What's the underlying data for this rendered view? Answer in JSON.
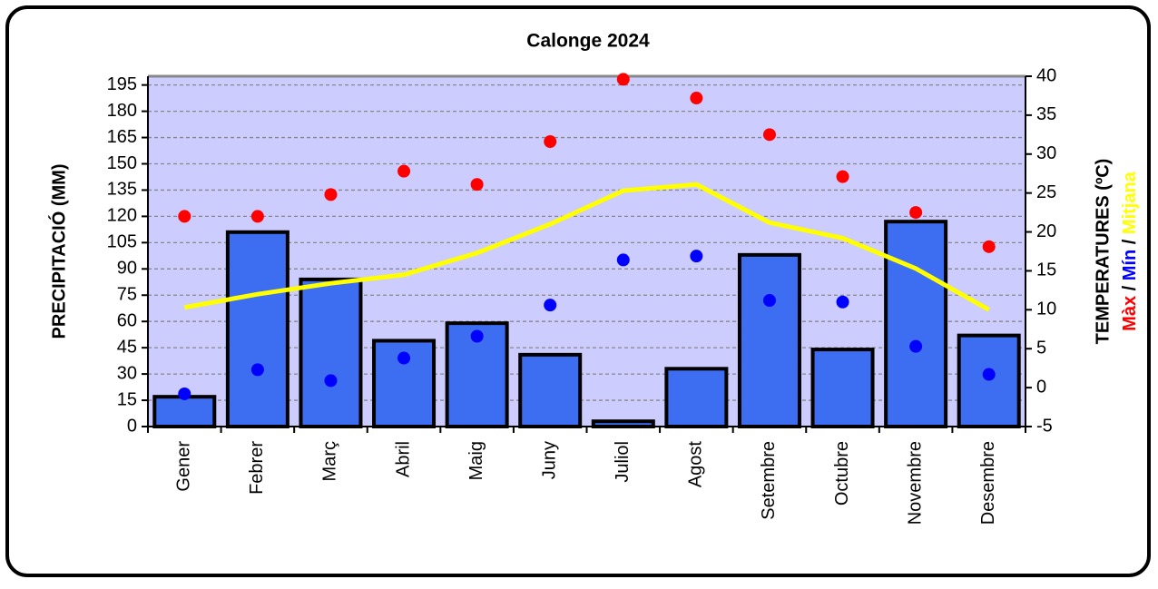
{
  "chart_data": {
    "type": "combo",
    "title": "Calonge 2024",
    "y_label": "PRECIPITACIÓ (MM)",
    "y2_label": "TEMPERATURES (ºC)",
    "y2_label_separator": "/",
    "categories": [
      "Gener",
      "Febrer",
      "Març",
      "Abril",
      "Maig",
      "Juny",
      "Juliol",
      "Agost",
      "Setembre",
      "Octubre",
      "Novembre",
      "Desembre"
    ],
    "series": [
      {
        "name": "Precipitació",
        "type": "bar",
        "color": "#3d6ef2",
        "values": [
          17,
          111,
          84,
          49,
          59,
          41,
          3,
          33,
          98,
          44,
          117,
          52
        ]
      },
      {
        "name": "Màx",
        "type": "scatter",
        "axis": "y2",
        "color": "#ff0000",
        "values": [
          22.0,
          22.0,
          24.8,
          27.8,
          26.1,
          31.6,
          39.6,
          37.2,
          32.5,
          27.1,
          22.5,
          18.1
        ]
      },
      {
        "name": "Mín",
        "type": "scatter",
        "axis": "y2",
        "color": "#0000ff",
        "values": [
          -0.8,
          2.3,
          0.9,
          3.8,
          6.6,
          10.6,
          16.4,
          16.9,
          11.2,
          11.0,
          5.3,
          1.7
        ]
      },
      {
        "name": "Mitjana",
        "type": "line",
        "axis": "y2",
        "color": "#ffff00",
        "values": [
          10.3,
          12.0,
          13.4,
          14.5,
          17.3,
          21.0,
          25.3,
          26.1,
          21.2,
          19.2,
          15.3,
          10.0
        ]
      }
    ],
    "ylim": [
      0,
      200
    ],
    "yticks": [
      0,
      15,
      30,
      45,
      60,
      75,
      90,
      105,
      120,
      135,
      150,
      165,
      180,
      195
    ],
    "y2lim": [
      -5,
      40
    ],
    "y2ticks": [
      -5,
      0,
      5,
      10,
      15,
      20,
      25,
      30,
      35,
      40
    ],
    "grid": true,
    "background": "#ccccff"
  }
}
